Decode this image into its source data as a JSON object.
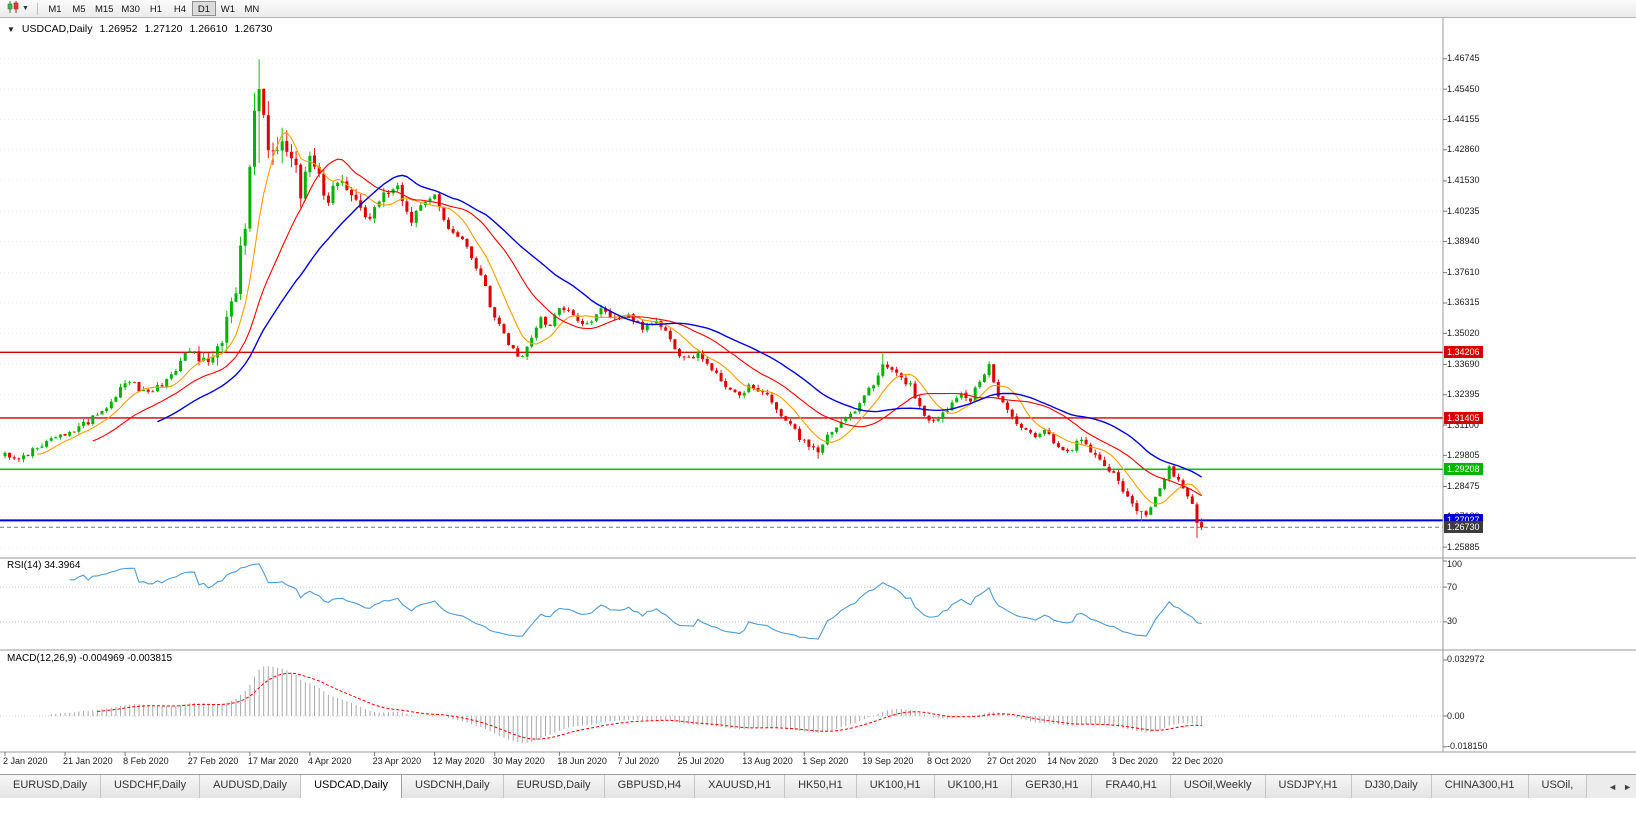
{
  "toolbar": {
    "chart_icon": "candlestick-chart",
    "dropdown_icon": "▼",
    "timeframes": [
      "M1",
      "M5",
      "M15",
      "M30",
      "H1",
      "H4",
      "D1",
      "W1",
      "MN"
    ],
    "active_timeframe": "D1"
  },
  "chart": {
    "header": {
      "collapse_icon": "▼",
      "symbol_period": "USDCAD,Daily",
      "open": "1.26952",
      "high": "1.27120",
      "low": "1.26610",
      "close": "1.26730"
    },
    "price_axis_labels": [
      "1.46745",
      "1.45450",
      "1.44155",
      "1.42860",
      "1.41530",
      "1.40235",
      "1.38940",
      "1.37610",
      "1.36315",
      "1.35020",
      "1.33690",
      "1.32395",
      "1.31100",
      "1.29805",
      "1.28475",
      "1.27180",
      "1.25885"
    ],
    "date_axis": [
      {
        "label": "2 Jan 2020",
        "day": 0
      },
      {
        "label": "21 Jan 2020",
        "day": 13
      },
      {
        "label": "8 Feb 2020",
        "day": 26
      },
      {
        "label": "27 Feb 2020",
        "day": 40
      },
      {
        "label": "17 Mar 2020",
        "day": 53
      },
      {
        "label": "4 Apr 2020",
        "day": 66
      },
      {
        "label": "23 Apr 2020",
        "day": 80
      },
      {
        "label": "12 May 2020",
        "day": 93
      },
      {
        "label": "30 May 2020",
        "day": 106
      },
      {
        "label": "18 Jun 2020",
        "day": 120
      },
      {
        "label": "7 Jul 2020",
        "day": 133
      },
      {
        "label": "25 Jul 2020",
        "day": 146
      },
      {
        "label": "13 Aug 2020",
        "day": 160
      },
      {
        "label": "1 Sep 2020",
        "day": 173
      },
      {
        "label": "19 Sep 2020",
        "day": 186
      },
      {
        "label": "8 Oct 2020",
        "day": 200
      },
      {
        "label": "27 Oct 2020",
        "day": 213
      },
      {
        "label": "14 Nov 2020",
        "day": 226
      },
      {
        "label": "3 Dec 2020",
        "day": 240
      },
      {
        "label": "22 Dec 2020",
        "day": 253
      }
    ],
    "levels": [
      {
        "name": "resistance-line-upper",
        "price": 1.34206,
        "label": "1.34206",
        "color": "#d40000",
        "badge_bg": "#d40000",
        "style": "solid",
        "width": 1.4
      },
      {
        "name": "resistance-line-lower",
        "price": 1.31405,
        "label": "1.31405",
        "color": "#d40000",
        "badge_bg": "#d40000",
        "style": "solid",
        "width": 1.4
      },
      {
        "name": "support-line-green",
        "price": 1.29208,
        "label": "1.29208",
        "color": "#00c400",
        "badge_bg": "#00b400",
        "style": "solid",
        "width": 1.6
      },
      {
        "name": "support-line-blue",
        "price": 1.27027,
        "label": "1.27027",
        "color": "#0000d6",
        "badge_bg": "#0000c8",
        "style": "solid",
        "width": 2
      },
      {
        "name": "bid-price-line",
        "price": 1.2673,
        "label": "1.26730",
        "color": "#7a7a7a",
        "badge_bg": "#3c3c3c",
        "style": "dash",
        "width": 1
      }
    ],
    "colors": {
      "up": "#00b200",
      "down": "#e00000",
      "ma_fast": "#ff9d00",
      "ma_mid": "#ff0000",
      "ma_slow": "#0000e0"
    }
  },
  "rsi": {
    "label": "RSI(14) 34.3964",
    "color": "#4f9bd5",
    "axis": [
      {
        "label": "100",
        "value": 100
      },
      {
        "label": "70",
        "value": 70
      },
      {
        "label": "30",
        "value": 30
      }
    ],
    "dotted_levels": [
      70,
      30
    ]
  },
  "macd": {
    "label": "MACD(12,26,9) -0.004969 -0.003815",
    "bar_color": "#a8a8a8",
    "signal_color": "#ff0000",
    "axis": [
      {
        "label": "0.032972",
        "value": 0.032972
      },
      {
        "label": "0.00",
        "value": 0
      },
      {
        "label": "-0.018150",
        "value": -0.01815
      }
    ]
  },
  "tabs": {
    "items": [
      "EURUSD,Daily",
      "USDCHF,Daily",
      "AUDUSD,Daily",
      "USDCAD,Daily",
      "USDCNH,Daily",
      "EURUSD,Daily",
      "GBPUSD,H4",
      "XAUUSD,H1",
      "HK50,H1",
      "UK100,H1",
      "UK100,H1",
      "GER30,H1",
      "FRA40,H1",
      "USOil,Weekly",
      "USDJPY,H1",
      "DJ30,Daily",
      "CHINA300,H1",
      "USOil,"
    ],
    "active_index": 3,
    "scroll_left_icon": "◄",
    "scroll_right_icon": "►"
  },
  "chart_data": {
    "type": "candlestick",
    "symbol": "USDCAD",
    "period": "Daily",
    "title": "USDCAD,Daily",
    "visible_range": {
      "start": "2 Jan 2020",
      "end": "31 Dec 2020"
    },
    "ylim": [
      1.25885,
      1.46745
    ],
    "num_days": 260,
    "last_candle": {
      "open": 1.26952,
      "high": 1.2712,
      "low": 1.2661,
      "close": 1.2673
    },
    "peak": {
      "day": 55,
      "high": 1.4672
    },
    "price_path_keypoints": [
      [
        0,
        1.299
      ],
      [
        3,
        1.2958
      ],
      [
        7,
        1.3022
      ],
      [
        11,
        1.3058
      ],
      [
        14,
        1.3068
      ],
      [
        18,
        1.3125
      ],
      [
        22,
        1.3188
      ],
      [
        25,
        1.3268
      ],
      [
        27,
        1.3298
      ],
      [
        30,
        1.3252
      ],
      [
        34,
        1.3282
      ],
      [
        37,
        1.3332
      ],
      [
        39,
        1.3415
      ],
      [
        40,
        1.3442
      ],
      [
        42,
        1.3392
      ],
      [
        44,
        1.3368
      ],
      [
        46,
        1.3428
      ],
      [
        48,
        1.356
      ],
      [
        50,
        1.3712
      ],
      [
        52,
        1.3938
      ],
      [
        53,
        1.418
      ],
      [
        54,
        1.448
      ],
      [
        55,
        1.46
      ],
      [
        56,
        1.4445
      ],
      [
        58,
        1.4262
      ],
      [
        60,
        1.4375
      ],
      [
        62,
        1.4295
      ],
      [
        64,
        1.4115
      ],
      [
        66,
        1.4228
      ],
      [
        68,
        1.4152
      ],
      [
        70,
        1.4082
      ],
      [
        73,
        1.4168
      ],
      [
        76,
        1.4058
      ],
      [
        79,
        1.3992
      ],
      [
        82,
        1.4088
      ],
      [
        85,
        1.4125
      ],
      [
        88,
        1.3992
      ],
      [
        91,
        1.4052
      ],
      [
        93,
        1.4098
      ],
      [
        96,
        1.3952
      ],
      [
        99,
        1.3892
      ],
      [
        102,
        1.3788
      ],
      [
        104,
        1.3692
      ],
      [
        106,
        1.3562
      ],
      [
        108,
        1.3495
      ],
      [
        110,
        1.3428
      ],
      [
        112,
        1.3398
      ],
      [
        114,
        1.3488
      ],
      [
        116,
        1.3558
      ],
      [
        118,
        1.3542
      ],
      [
        120,
        1.3618
      ],
      [
        123,
        1.3572
      ],
      [
        126,
        1.3532
      ],
      [
        129,
        1.3598
      ],
      [
        132,
        1.3562
      ],
      [
        135,
        1.3582
      ],
      [
        138,
        1.3522
      ],
      [
        141,
        1.3558
      ],
      [
        144,
        1.3472
      ],
      [
        146,
        1.3408
      ],
      [
        148,
        1.3392
      ],
      [
        150,
        1.3422
      ],
      [
        153,
        1.3352
      ],
      [
        156,
        1.3262
      ],
      [
        159,
        1.3232
      ],
      [
        161,
        1.3288
      ],
      [
        164,
        1.3252
      ],
      [
        167,
        1.3182
      ],
      [
        170,
        1.3112
      ],
      [
        172,
        1.3052
      ],
      [
        174,
        1.3022
      ],
      [
        176,
        1.2992
      ],
      [
        178,
        1.3058
      ],
      [
        181,
        1.3132
      ],
      [
        184,
        1.3178
      ],
      [
        186,
        1.3228
      ],
      [
        188,
        1.3285
      ],
      [
        190,
        1.3378
      ],
      [
        192,
        1.3345
      ],
      [
        194,
        1.3312
      ],
      [
        196,
        1.3282
      ],
      [
        199,
        1.3148
      ],
      [
        201,
        1.3132
      ],
      [
        204,
        1.3182
      ],
      [
        207,
        1.3242
      ],
      [
        209,
        1.3212
      ],
      [
        211,
        1.3302
      ],
      [
        213,
        1.3358
      ],
      [
        215,
        1.3232
      ],
      [
        217,
        1.3182
      ],
      [
        219,
        1.3122
      ],
      [
        221,
        1.3082
      ],
      [
        223,
        1.3062
      ],
      [
        225,
        1.3102
      ],
      [
        227,
        1.3042
      ],
      [
        229,
        1.2992
      ],
      [
        231,
        1.3012
      ],
      [
        233,
        1.3052
      ],
      [
        235,
        1.2992
      ],
      [
        237,
        1.2952
      ],
      [
        239,
        1.2922
      ],
      [
        241,
        1.2872
      ],
      [
        243,
        1.2792
      ],
      [
        245,
        1.2742
      ],
      [
        247,
        1.2722
      ],
      [
        249,
        1.2802
      ],
      [
        251,
        1.2882
      ],
      [
        252,
        1.2928
      ],
      [
        254,
        1.2868
      ],
      [
        256,
        1.2802
      ],
      [
        258,
        1.2732
      ],
      [
        259,
        1.2673
      ]
    ],
    "moving_averages": [
      {
        "name": "fast",
        "type": "sma",
        "period": 8,
        "color": "#ff9d00"
      },
      {
        "name": "medium",
        "type": "sma",
        "period": 20,
        "color": "#ff0000"
      },
      {
        "name": "slow",
        "type": "sma",
        "period": 34,
        "color": "#0000e0"
      }
    ],
    "indicators": {
      "rsi": {
        "period": 14,
        "current": 34.3964,
        "levels": [
          30,
          70
        ]
      },
      "macd": {
        "fast": 12,
        "slow": 26,
        "signal": 9,
        "current_macd": -0.004969,
        "current_signal": -0.003815,
        "panel_max": 0.032972,
        "panel_min": -0.01815
      }
    },
    "horizontal_levels": [
      1.34206,
      1.31405,
      1.29208,
      1.27027
    ],
    "current_price": 1.2673
  }
}
